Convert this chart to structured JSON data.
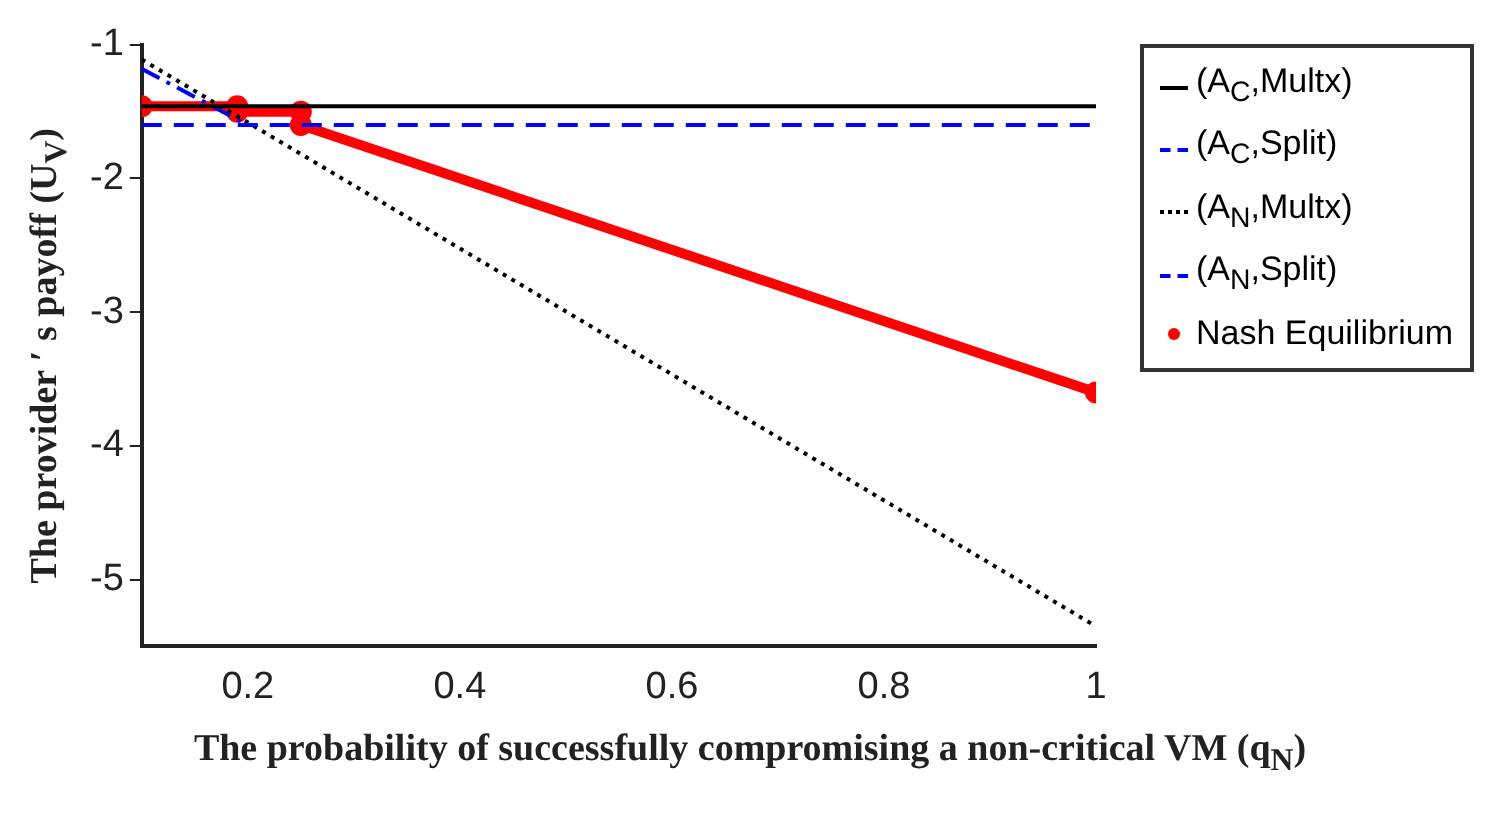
{
  "chart_data": {
    "type": "line",
    "xlabel": "The probability of successfully compromising a non-critical VM (q$_{N}$)",
    "ylabel": "The provider ′ s payoff (U$_{V}$)",
    "xlim": [
      0.1,
      1
    ],
    "xticks": [
      0.2,
      0.4,
      0.6,
      0.8,
      1
    ],
    "ylim": [
      -5.5,
      -1
    ],
    "yticks": [
      -5,
      -4,
      -3,
      -2,
      -1
    ],
    "grid": false,
    "legend": "right",
    "series": [
      {
        "name": "(A$_{C}$,Multx)",
        "color": "#000000",
        "line_style": "solid",
        "x": [
          0.1,
          1
        ],
        "values": [
          -1.46,
          -1.46
        ]
      },
      {
        "name": "(A$_{C}$,Split)",
        "color": "#0000ff",
        "line_style": "dashed",
        "x": [
          0.1,
          1
        ],
        "values": [
          -1.6,
          -1.6
        ]
      },
      {
        "name": "(A$_{N}$,Multx)",
        "color": "#000000",
        "line_style": "dotted",
        "x": [
          0.1,
          1
        ],
        "values": [
          -1.11,
          -5.35
        ]
      },
      {
        "name": "(A$_{N}$,Split)",
        "color": "#0000ff",
        "line_style": "dashdot",
        "x": [
          0.1,
          0.2
        ],
        "values": [
          -1.18,
          -1.6
        ]
      },
      {
        "name": "Nash Equilibrium",
        "color": "#ff0000",
        "line_style": "solid",
        "marker": "circle",
        "x": [
          0.1,
          0.19,
          0.19,
          0.25,
          0.25,
          1
        ],
        "values": [
          -1.46,
          -1.46,
          -1.5,
          -1.5,
          -1.6,
          -3.6
        ]
      }
    ]
  }
}
